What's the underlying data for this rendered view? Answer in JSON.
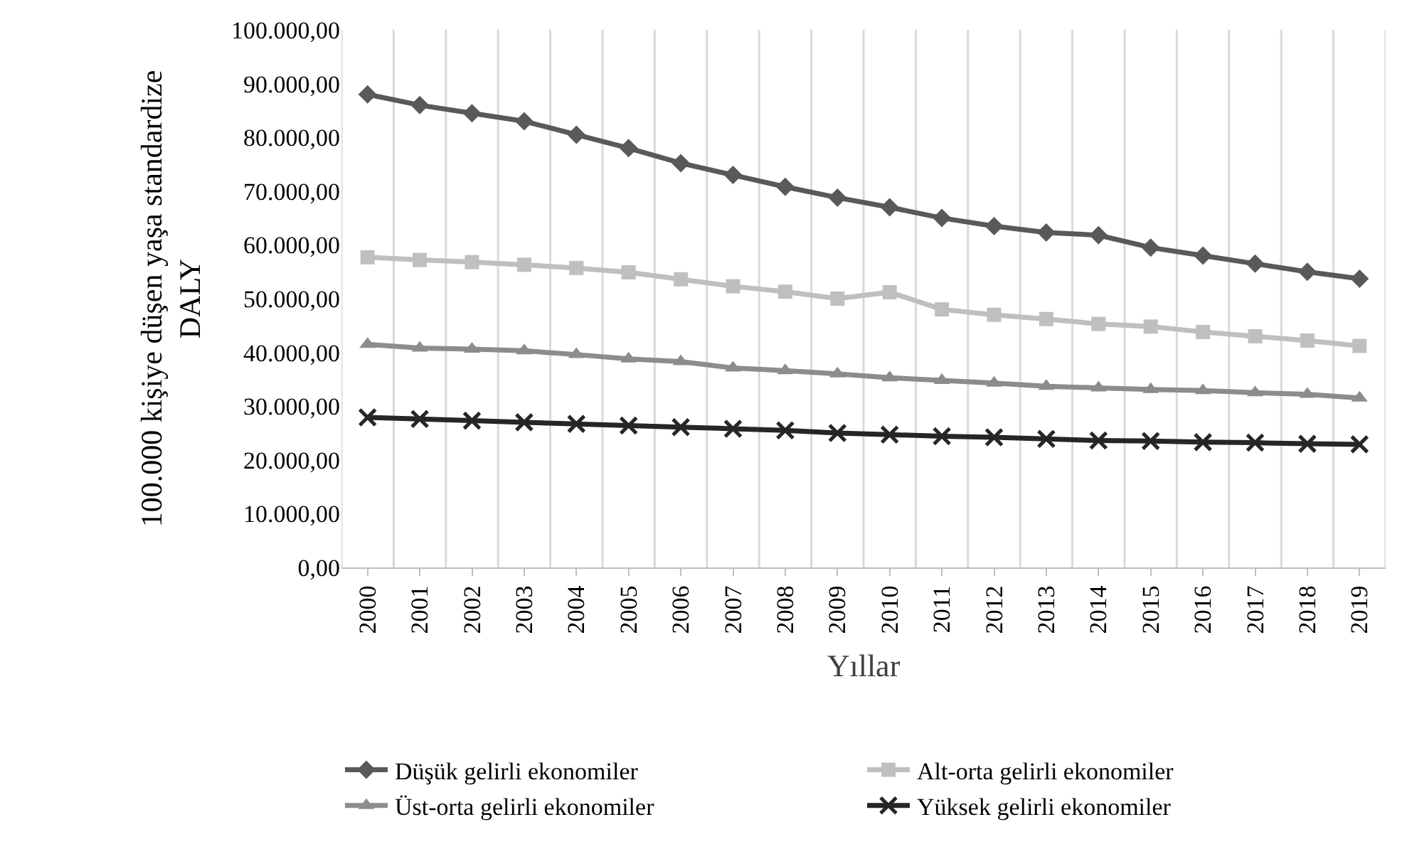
{
  "chart_data": {
    "type": "line",
    "xlabel": "Yıllar",
    "ylabel": "100.000 kişiye düşen yaşa standardize\nDALY",
    "categories": [
      "2000",
      "2001",
      "2002",
      "2003",
      "2004",
      "2005",
      "2006",
      "2007",
      "2008",
      "2009",
      "2010",
      "2011",
      "2012",
      "2013",
      "2014",
      "2015",
      "2016",
      "2017",
      "2018",
      "2019"
    ],
    "series": [
      {
        "name": "Düşük gelirli ekonomiler",
        "color": "#595959",
        "marker": "diamond",
        "values": [
          88000,
          86000,
          84500,
          83000,
          80500,
          78000,
          75200,
          73000,
          70800,
          68800,
          67000,
          65000,
          63500,
          62300,
          61800,
          59500,
          58000,
          56500,
          55000,
          53700
        ]
      },
      {
        "name": "Alt-orta gelirli ekonomiler",
        "color": "#bfbfbf",
        "marker": "square",
        "values": [
          57700,
          57200,
          56800,
          56300,
          55700,
          54900,
          53600,
          52300,
          51300,
          50000,
          51200,
          48000,
          47000,
          46200,
          45300,
          44800,
          43800,
          43000,
          42200,
          41200
        ]
      },
      {
        "name": "Üst-orta gelirli ekonomiler",
        "color": "#8c8c8c",
        "marker": "triangle",
        "values": [
          41500,
          40800,
          40600,
          40300,
          39600,
          38800,
          38300,
          37100,
          36600,
          36000,
          35300,
          34800,
          34300,
          33700,
          33400,
          33100,
          32900,
          32500,
          32200,
          31500
        ]
      },
      {
        "name": "Yüksek gelirli ekonomiler",
        "color": "#262626",
        "marker": "cross",
        "values": [
          27900,
          27600,
          27300,
          27000,
          26700,
          26400,
          26100,
          25800,
          25500,
          25000,
          24700,
          24400,
          24200,
          23900,
          23600,
          23500,
          23300,
          23200,
          23000,
          22900
        ]
      }
    ],
    "ylim": [
      0,
      100000
    ],
    "yticks": [
      {
        "value": 0,
        "label": "0,00"
      },
      {
        "value": 10000,
        "label": "10.000,00"
      },
      {
        "value": 20000,
        "label": "20.000,00"
      },
      {
        "value": 30000,
        "label": "30.000,00"
      },
      {
        "value": 40000,
        "label": "40.000,00"
      },
      {
        "value": 50000,
        "label": "50.000,00"
      },
      {
        "value": 60000,
        "label": "60.000,00"
      },
      {
        "value": 70000,
        "label": "70.000,00"
      },
      {
        "value": 80000,
        "label": "80.000,00"
      },
      {
        "value": 90000,
        "label": "90.000,00"
      },
      {
        "value": 100000,
        "label": "100.000,00"
      }
    ],
    "grid": "x",
    "legend": "bottom",
    "line_style": "solid"
  }
}
